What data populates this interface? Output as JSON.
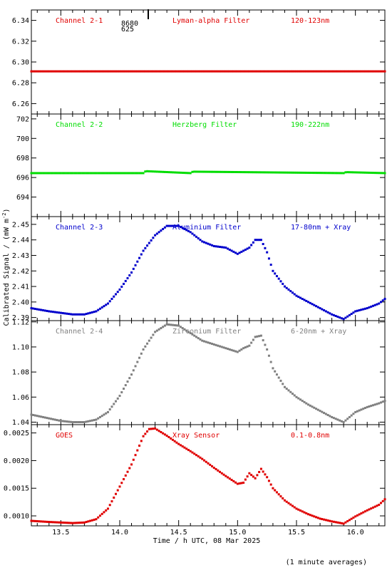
{
  "figure": {
    "ylabel_text": "Calibrated Signal / (mW m",
    "ylabel_sup": "-2",
    "ylabel_close": ")",
    "xlabel": "Time / h UTC, 08 Mar 2025",
    "footnote": "(1 minute averages)",
    "marker_text_1": "8680",
    "marker_text_2": "625",
    "xlim": [
      13.25,
      16.25
    ],
    "x_ticks": [
      13.5,
      14.0,
      14.5,
      15.0,
      15.5,
      16.0
    ],
    "x_tick_labels": [
      "13.5",
      "14.0",
      "14.5",
      "15.0",
      "15.5",
      "16.0"
    ]
  },
  "chart_data": [
    {
      "type": "scatter",
      "name": "Channel 2-1",
      "filter": "Lyman-alpha Filter",
      "band": "120-123nm",
      "color": "#e00000",
      "ylim": [
        6.25,
        6.35
      ],
      "y_ticks": [
        6.26,
        6.28,
        6.3,
        6.32,
        6.34
      ],
      "y_tick_labels": [
        "6.26",
        "6.28",
        "6.30",
        "6.32",
        "6.34"
      ],
      "x": [
        13.25,
        16.25
      ],
      "y": [
        6.291,
        6.291
      ]
    },
    {
      "type": "scatter",
      "name": "Channel 2-2",
      "filter": "Herzberg Filter",
      "band": "190-222nm",
      "color": "#00dd00",
      "ylim": [
        692,
        702.5
      ],
      "y_ticks": [
        694,
        696,
        698,
        700,
        702
      ],
      "y_tick_labels": [
        "694",
        "696",
        "698",
        "700",
        "702"
      ],
      "x": [
        13.25,
        14.2,
        14.22,
        14.6,
        14.62,
        15.9,
        15.92,
        16.25
      ],
      "y": [
        696.45,
        696.45,
        696.65,
        696.45,
        696.6,
        696.45,
        696.55,
        696.45
      ]
    },
    {
      "type": "scatter",
      "name": "Channel 2-3",
      "filter": "Aluminium Filter",
      "band": "17-80nm + Xray",
      "color": "#0000cc",
      "ylim": [
        2.388,
        2.455
      ],
      "y_ticks": [
        2.39,
        2.4,
        2.41,
        2.42,
        2.43,
        2.44,
        2.45
      ],
      "y_tick_labels": [
        "2.39",
        "2.40",
        "2.41",
        "2.42",
        "2.43",
        "2.44",
        "2.45"
      ],
      "x": [
        13.25,
        13.4,
        13.5,
        13.6,
        13.7,
        13.8,
        13.9,
        14.0,
        14.1,
        14.2,
        14.3,
        14.4,
        14.5,
        14.6,
        14.7,
        14.8,
        14.9,
        15.0,
        15.05,
        15.1,
        15.15,
        15.2,
        15.25,
        15.3,
        15.4,
        15.5,
        15.6,
        15.7,
        15.8,
        15.9,
        16.0,
        16.1,
        16.2,
        16.25
      ],
      "y": [
        2.396,
        2.394,
        2.393,
        2.392,
        2.392,
        2.394,
        2.399,
        2.408,
        2.419,
        2.433,
        2.443,
        2.449,
        2.449,
        2.445,
        2.439,
        2.436,
        2.435,
        2.431,
        2.433,
        2.435,
        2.44,
        2.44,
        2.432,
        2.42,
        2.41,
        2.404,
        2.4,
        2.396,
        2.392,
        2.389,
        2.394,
        2.396,
        2.399,
        2.402
      ]
    },
    {
      "type": "scatter",
      "name": "Channel 2-4",
      "filter": "Zirconium Filter",
      "band": "6-20nm + Xray",
      "color": "#808080",
      "ylim": [
        1.038,
        1.121
      ],
      "y_ticks": [
        1.04,
        1.06,
        1.08,
        1.1,
        1.12
      ],
      "y_tick_labels": [
        "1.04",
        "1.06",
        "1.08",
        "1.10",
        "1.12"
      ],
      "x": [
        13.25,
        13.4,
        13.5,
        13.6,
        13.7,
        13.8,
        13.9,
        14.0,
        14.1,
        14.2,
        14.3,
        14.4,
        14.5,
        14.6,
        14.7,
        14.8,
        14.9,
        15.0,
        15.05,
        15.1,
        15.15,
        15.2,
        15.25,
        15.3,
        15.4,
        15.5,
        15.6,
        15.7,
        15.8,
        15.9,
        16.0,
        16.1,
        16.2,
        16.25
      ],
      "y": [
        1.046,
        1.043,
        1.041,
        1.04,
        1.04,
        1.042,
        1.048,
        1.061,
        1.078,
        1.098,
        1.112,
        1.118,
        1.117,
        1.111,
        1.105,
        1.102,
        1.099,
        1.096,
        1.099,
        1.101,
        1.108,
        1.109,
        1.098,
        1.083,
        1.068,
        1.06,
        1.054,
        1.049,
        1.044,
        1.04,
        1.048,
        1.052,
        1.055,
        1.057
      ]
    },
    {
      "type": "scatter",
      "name": "GOES",
      "filter": "Xray Sensor",
      "band": "0.1-0.8nm",
      "color": "#e00000",
      "ylim": [
        0.00082,
        0.00265
      ],
      "y_ticks": [
        0.001,
        0.0015,
        0.002,
        0.0025
      ],
      "y_tick_labels": [
        "0.0010",
        "0.0015",
        "0.0020",
        "0.0025"
      ],
      "x": [
        13.25,
        13.4,
        13.5,
        13.6,
        13.7,
        13.8,
        13.9,
        14.0,
        14.1,
        14.2,
        14.25,
        14.3,
        14.4,
        14.5,
        14.6,
        14.7,
        14.8,
        14.9,
        15.0,
        15.05,
        15.1,
        15.15,
        15.2,
        15.25,
        15.3,
        15.4,
        15.5,
        15.6,
        15.7,
        15.8,
        15.9,
        16.0,
        16.1,
        16.2,
        16.25
      ],
      "y": [
        0.00091,
        0.00089,
        0.00088,
        0.00087,
        0.00088,
        0.00094,
        0.00113,
        0.00153,
        0.00193,
        0.00244,
        0.00257,
        0.00258,
        0.00245,
        0.0023,
        0.00217,
        0.00203,
        0.00187,
        0.00172,
        0.00158,
        0.0016,
        0.00177,
        0.00168,
        0.00185,
        0.0017,
        0.0015,
        0.00128,
        0.00113,
        0.00103,
        0.00095,
        0.0009,
        0.00086,
        0.00099,
        0.0011,
        0.0012,
        0.0013
      ]
    }
  ]
}
